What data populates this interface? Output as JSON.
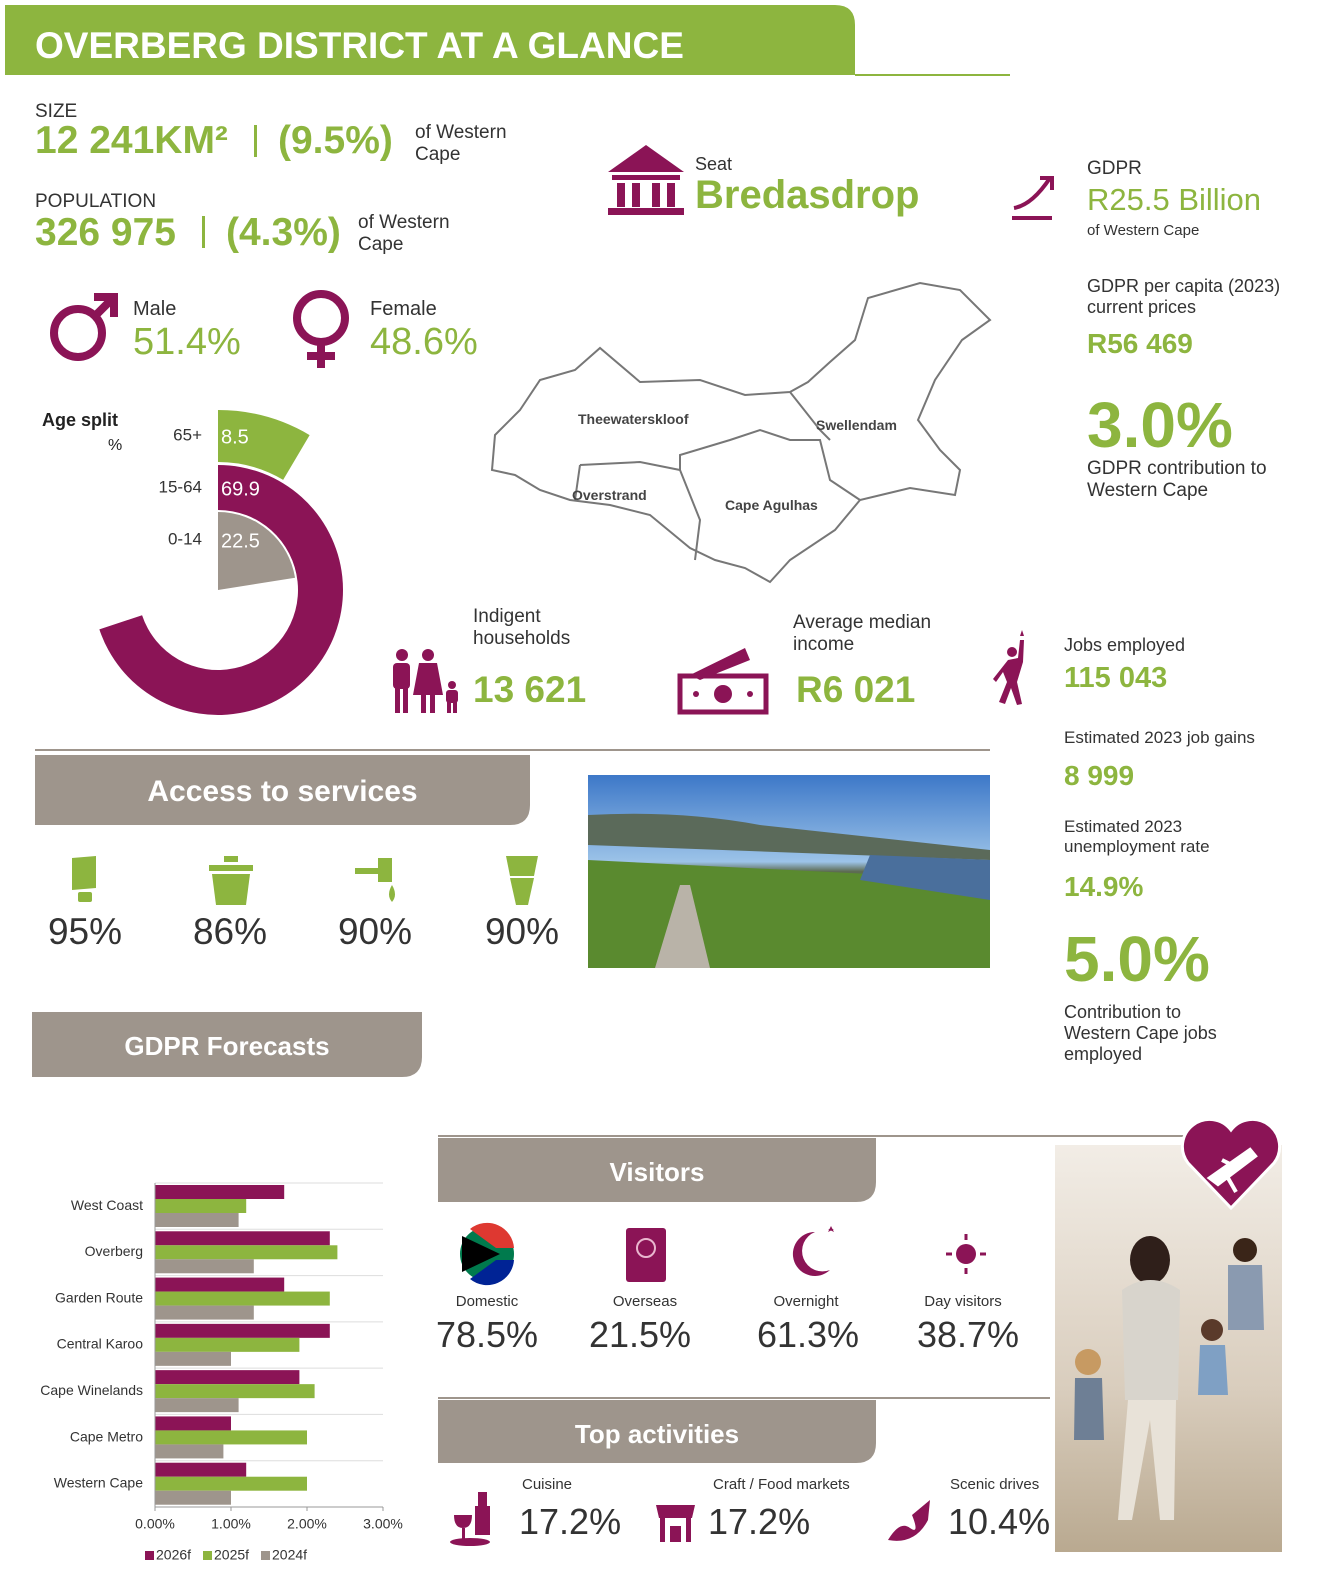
{
  "header": {
    "title": "OVERBERG DISTRICT AT A GLANCE"
  },
  "size": {
    "label": "SIZE",
    "value": "12 241KM²",
    "share": "(9.5%)",
    "note": "of Western Cape"
  },
  "population": {
    "label": "POPULATION",
    "value": "326 975",
    "share": "(4.3%)",
    "note": "of Western Cape"
  },
  "gender": {
    "male": {
      "label": "Male",
      "value": "51.4%"
    },
    "female": {
      "label": "Female",
      "value": "48.6%"
    }
  },
  "seat": {
    "label": "Seat",
    "value": "Bredasdrop"
  },
  "gdpr": {
    "label": "GDPR",
    "value": "R25.5 Billion",
    "note": "of Western Cape"
  },
  "gdpr_per_capita": {
    "label": "GDPR per capita (2023) current prices",
    "value": "R56 469"
  },
  "gdpr_contribution": {
    "value": "3.0%",
    "label": "GDPR contribution to Western Cape"
  },
  "map": {
    "regions": [
      "Theewaterskloof",
      "Swellendam",
      "Overstrand",
      "Cape Agulhas"
    ]
  },
  "indigent": {
    "label": "Indigent households",
    "value": "13 621"
  },
  "income": {
    "label": "Average median income",
    "value": "R6 021"
  },
  "jobs": {
    "label": "Jobs employed",
    "value": "115 043"
  },
  "job_gains": {
    "label": "Estimated 2023 job gains",
    "value": "8 999"
  },
  "unemployment": {
    "label": "Estimated 2023 unemployment rate",
    "value": "14.9%"
  },
  "jobs_contribution": {
    "value": "5.0%",
    "label": "Contribution to Western Cape jobs employed"
  },
  "access": {
    "title": "Access to services",
    "values": [
      "95%",
      "86%",
      "90%",
      "90%"
    ]
  },
  "forecasts": {
    "title": "GDPR Forecasts"
  },
  "visitors": {
    "title": "Visitors",
    "items": [
      {
        "label": "Domestic",
        "value": "78.5%"
      },
      {
        "label": "Overseas",
        "value": "21.5%"
      },
      {
        "label": "Overnight",
        "value": "61.3%"
      },
      {
        "label": "Day visitors",
        "value": "38.7%"
      }
    ]
  },
  "activities": {
    "title": "Top activities",
    "items": [
      {
        "label": "Cuisine",
        "value": "17.2%"
      },
      {
        "label": "Craft / Food markets",
        "value": "17.2%"
      },
      {
        "label": "Scenic drives",
        "value": "10.4%"
      }
    ]
  },
  "chart_data": [
    {
      "type": "radial_bar",
      "title": "Age split",
      "subtitle": "%",
      "categories": [
        "65+",
        "15-64",
        "0-14"
      ],
      "values": [
        8.5,
        69.9,
        22.5
      ],
      "colors": [
        "#8db53f",
        "#8b1456",
        "#9e958c"
      ]
    },
    {
      "type": "bar",
      "orientation": "horizontal",
      "categories": [
        "West Coast",
        "Overberg",
        "Garden Route",
        "Central Karoo",
        "Cape Winelands",
        "Cape Metro",
        "Western Cape"
      ],
      "series": [
        {
          "name": "2026f",
          "color": "#8b1456",
          "values": [
            1.7,
            2.3,
            1.7,
            2.3,
            1.9,
            1.0,
            1.2
          ]
        },
        {
          "name": "2025f",
          "color": "#8db53f",
          "values": [
            1.2,
            2.4,
            2.3,
            1.9,
            2.1,
            2.0,
            2.0
          ]
        },
        {
          "name": "2024f",
          "color": "#9e958c",
          "values": [
            1.1,
            1.3,
            1.3,
            1.0,
            1.1,
            0.9,
            1.0
          ]
        }
      ],
      "xlim": [
        0,
        3
      ],
      "xticks": [
        {
          "value": 0,
          "label": "0.00%"
        },
        {
          "value": 1,
          "label": "1.00%"
        },
        {
          "value": 2,
          "label": "2.00%"
        },
        {
          "value": 3,
          "label": "3.00%"
        }
      ],
      "legend": "bottom"
    }
  ]
}
